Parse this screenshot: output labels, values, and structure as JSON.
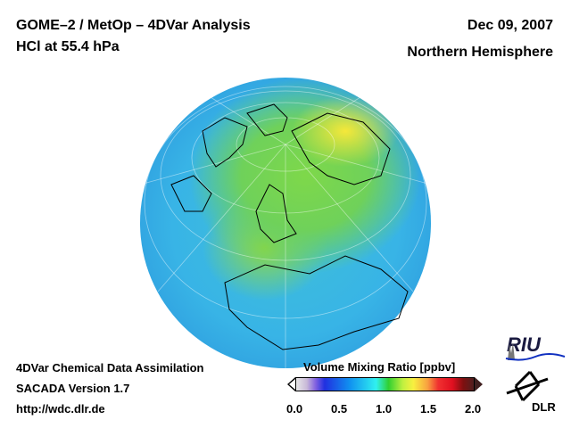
{
  "header": {
    "title": "GOME–2 / MetOp – 4DVar Analysis",
    "subtitle": "HCl at 55.4 hPa",
    "date": "Dec 09, 2007",
    "region": "Northern Hemisphere"
  },
  "footer": {
    "line1": "4DVar Chemical Data Assimilation",
    "line2": "SACADA Version 1.7",
    "line3": "http://wdc.dlr.de"
  },
  "colorbar": {
    "label": "Volume Mixing Ratio [ppbv]",
    "ticks": [
      "0.0",
      "0.5",
      "1.0",
      "1.5",
      "2.0"
    ],
    "range": [
      0.0,
      2.0
    ]
  },
  "logos": {
    "riu": "RIU",
    "dlr": "DLR"
  }
}
